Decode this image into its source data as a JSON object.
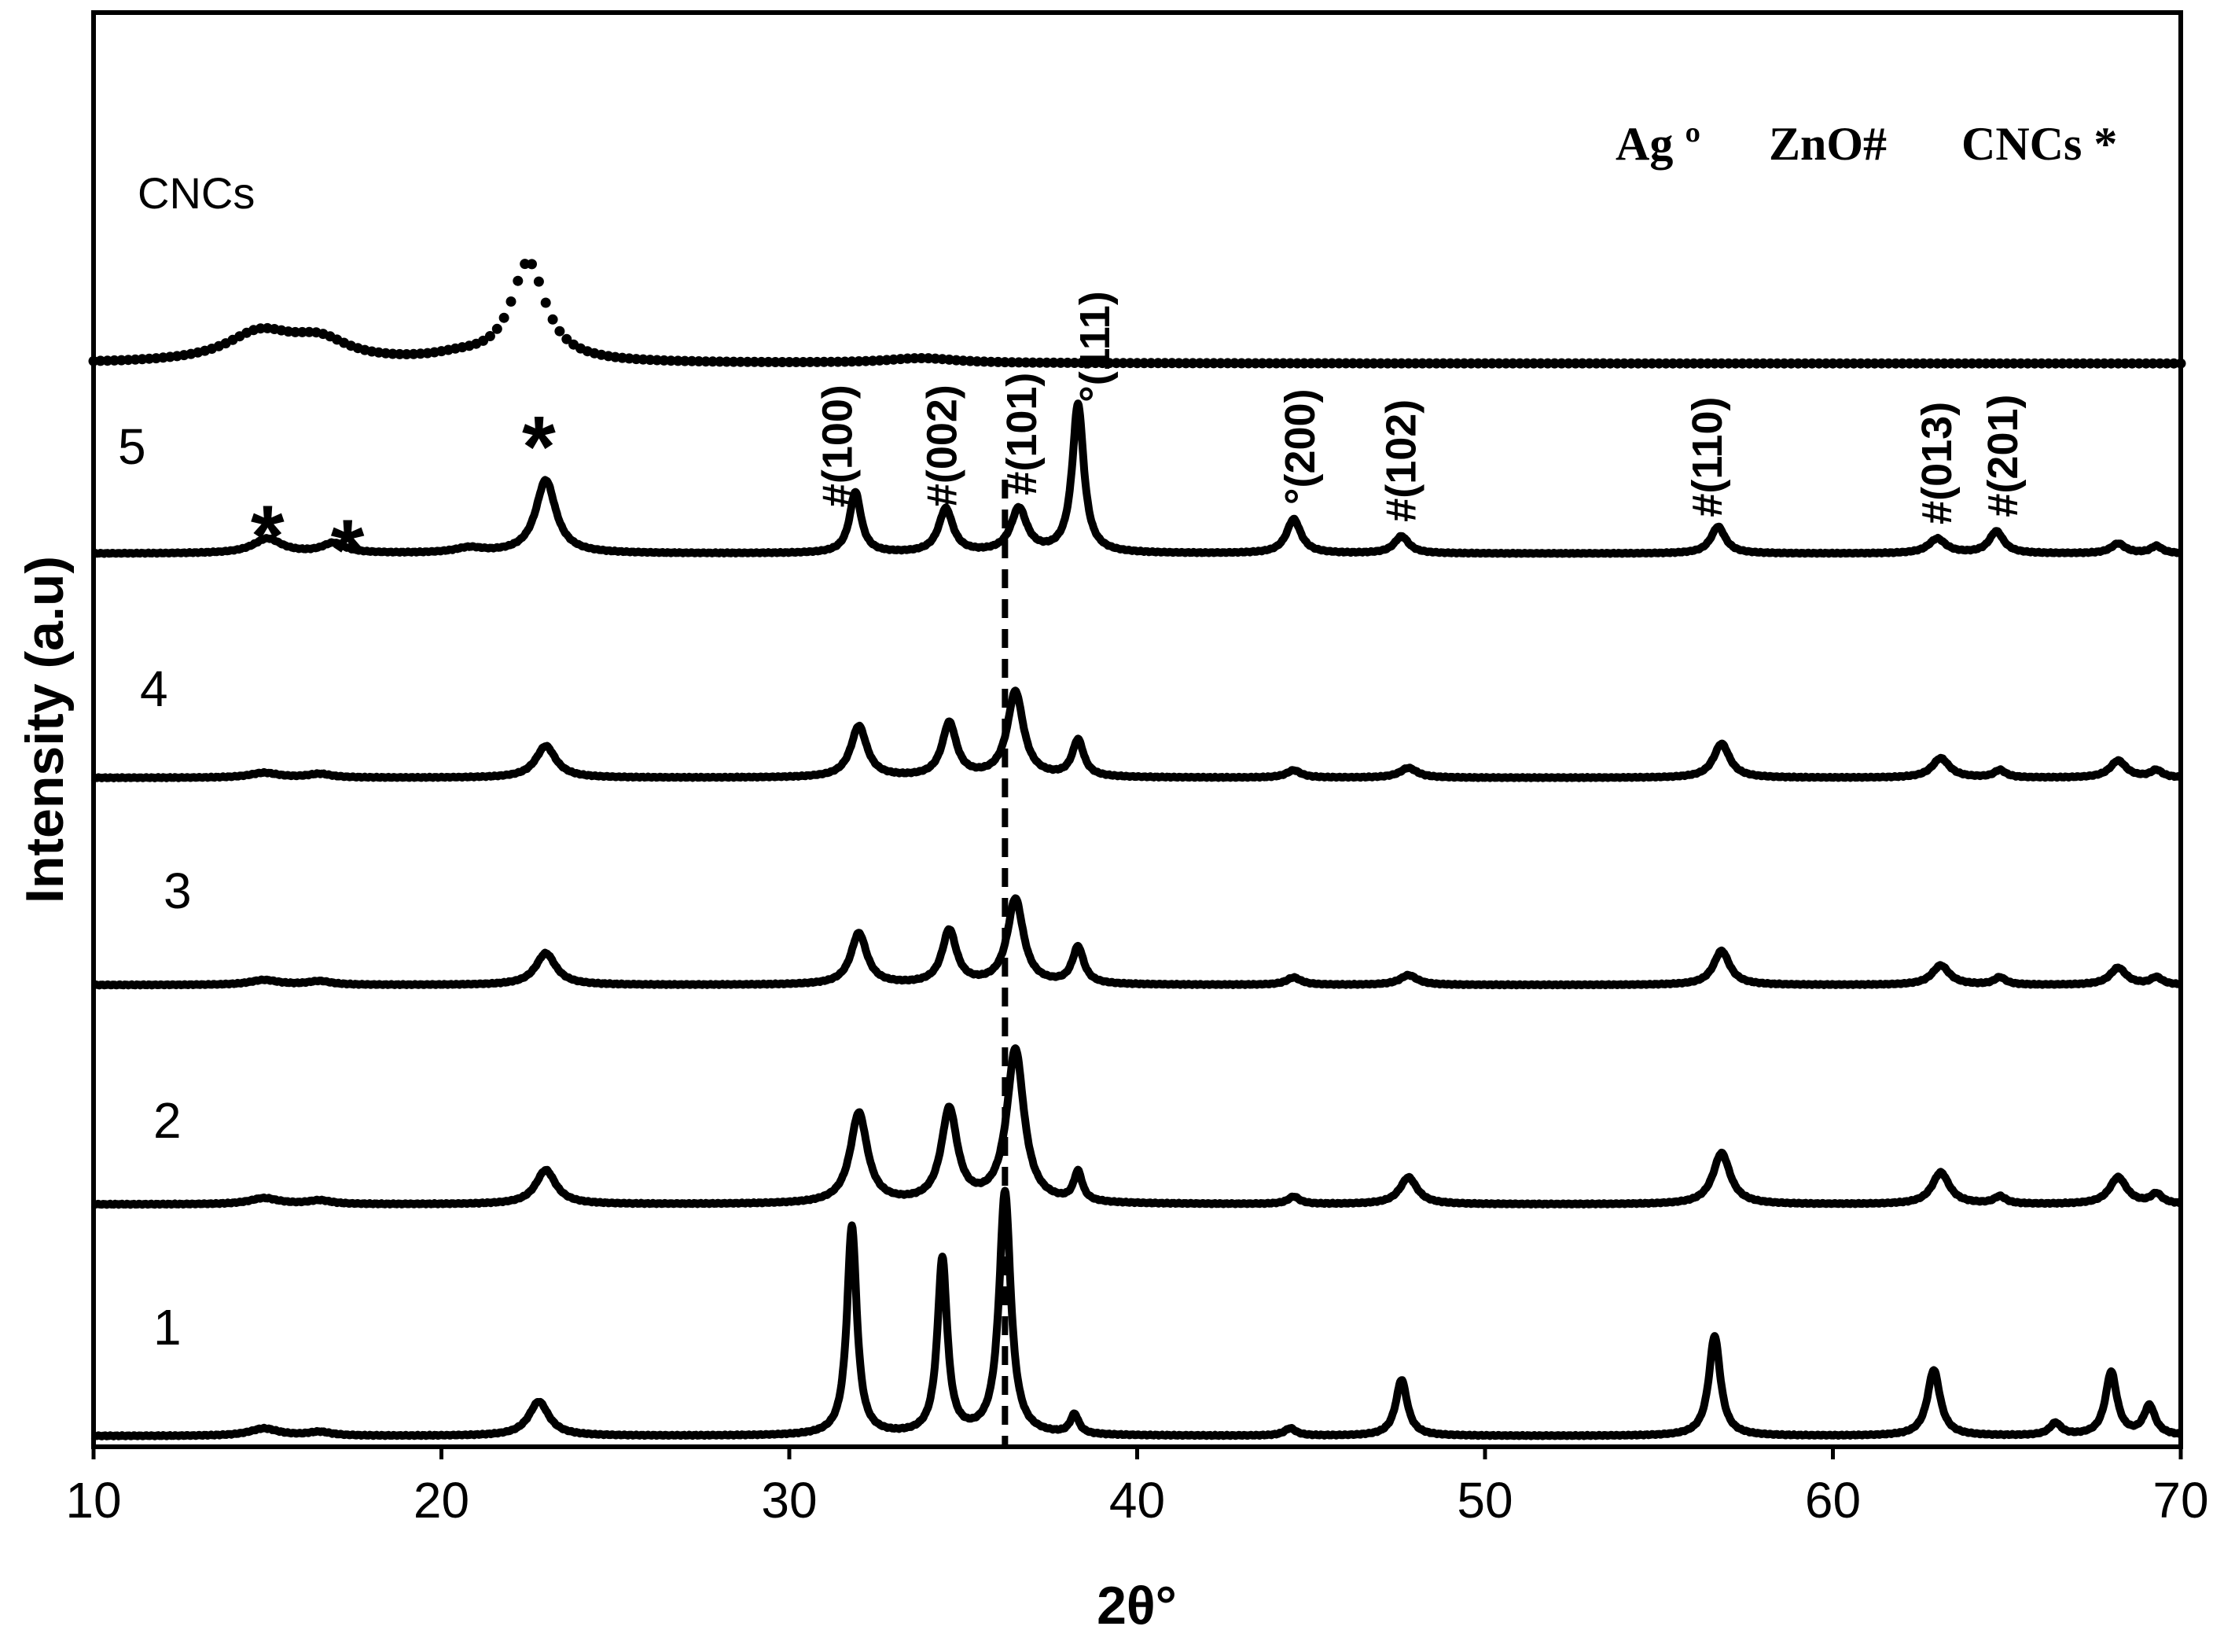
{
  "chart_data": {
    "type": "line",
    "title": "",
    "xlabel": "2θ°",
    "ylabel": "Intensity (a.u)",
    "xlim": [
      10,
      70
    ],
    "x_ticks": [
      "10",
      "20",
      "30",
      "40",
      "50",
      "60",
      "70"
    ],
    "grid": false,
    "reference_line": {
      "x": 36.2,
      "style": "dashed"
    },
    "legend_text": [
      "Ag º",
      "ZnO#",
      "CNCs *"
    ],
    "series": [
      {
        "name": "1",
        "offset": 0,
        "style": "solid",
        "baseline": 1.2,
        "peaks": [
          [
            14.9,
            3,
            0.5
          ],
          [
            16.5,
            1.5,
            0.4
          ],
          [
            22.8,
            14,
            0.35
          ],
          [
            31.8,
            86,
            0.17
          ],
          [
            34.4,
            72,
            0.17
          ],
          [
            36.2,
            100,
            0.2
          ],
          [
            38.2,
            8,
            0.15
          ],
          [
            44.4,
            3,
            0.2
          ],
          [
            47.6,
            23,
            0.2
          ],
          [
            56.6,
            41,
            0.2
          ],
          [
            62.9,
            27,
            0.22
          ],
          [
            66.4,
            5,
            0.2
          ],
          [
            68.0,
            26,
            0.2
          ],
          [
            69.1,
            12,
            0.2
          ]
        ]
      },
      {
        "name": "2",
        "offset": 95,
        "style": "solid",
        "baseline": 1.2,
        "peaks": [
          [
            14.9,
            2.5,
            0.5
          ],
          [
            16.5,
            1.5,
            0.4
          ],
          [
            23.0,
            14,
            0.35
          ],
          [
            32.0,
            37,
            0.3
          ],
          [
            34.6,
            38,
            0.28
          ],
          [
            36.5,
            63,
            0.3
          ],
          [
            38.3,
            12,
            0.15
          ],
          [
            44.5,
            3,
            0.2
          ],
          [
            47.8,
            11,
            0.3
          ],
          [
            56.8,
            21,
            0.3
          ],
          [
            63.1,
            13,
            0.3
          ],
          [
            64.8,
            3,
            0.2
          ],
          [
            68.2,
            11,
            0.3
          ],
          [
            69.3,
            4,
            0.2
          ]
        ]
      },
      {
        "name": "3",
        "offset": 185,
        "style": "solid",
        "baseline": 1.2,
        "peaks": [
          [
            14.9,
            2,
            0.5
          ],
          [
            16.5,
            1.5,
            0.4
          ],
          [
            23.0,
            13,
            0.35
          ],
          [
            32.0,
            21,
            0.28
          ],
          [
            34.6,
            22,
            0.25
          ],
          [
            36.5,
            35,
            0.28
          ],
          [
            38.3,
            15,
            0.2
          ],
          [
            44.5,
            3,
            0.25
          ],
          [
            47.8,
            4,
            0.3
          ],
          [
            56.8,
            14,
            0.28
          ],
          [
            63.1,
            8,
            0.3
          ],
          [
            64.8,
            3,
            0.2
          ],
          [
            68.2,
            7,
            0.28
          ],
          [
            69.3,
            3,
            0.2
          ]
        ]
      },
      {
        "name": "4",
        "offset": 270,
        "style": "solid",
        "baseline": 1.2,
        "peaks": [
          [
            14.9,
            2,
            0.5
          ],
          [
            16.5,
            1.5,
            0.4
          ],
          [
            23.0,
            13,
            0.35
          ],
          [
            32.0,
            21,
            0.28
          ],
          [
            34.6,
            22,
            0.25
          ],
          [
            36.5,
            35,
            0.28
          ],
          [
            38.3,
            15,
            0.2
          ],
          [
            44.5,
            3,
            0.25
          ],
          [
            47.8,
            4,
            0.3
          ],
          [
            56.8,
            14,
            0.28
          ],
          [
            63.1,
            8,
            0.3
          ],
          [
            64.8,
            3,
            0.2
          ],
          [
            68.2,
            7,
            0.28
          ],
          [
            69.3,
            3,
            0.2
          ]
        ]
      },
      {
        "name": "5",
        "offset": 362,
        "style": "solid",
        "baseline": 1.2,
        "peaks": [
          [
            15.0,
            6,
            0.5
          ],
          [
            16.9,
            4,
            0.4
          ],
          [
            20.8,
            2,
            0.5
          ],
          [
            23.0,
            30,
            0.35
          ],
          [
            31.9,
            25,
            0.2
          ],
          [
            34.5,
            18,
            0.25
          ],
          [
            36.6,
            18,
            0.28
          ],
          [
            38.3,
            61,
            0.2
          ],
          [
            44.5,
            14,
            0.25
          ],
          [
            47.6,
            7,
            0.25
          ],
          [
            56.7,
            11,
            0.25
          ],
          [
            63.0,
            6,
            0.3
          ],
          [
            64.7,
            9,
            0.25
          ],
          [
            68.2,
            4,
            0.25
          ],
          [
            69.3,
            3,
            0.2
          ]
        ]
      },
      {
        "name": "CNCs",
        "offset": 440,
        "style": "dotted",
        "baseline": 1.2,
        "peaks": [
          [
            14.8,
            12,
            1.2
          ],
          [
            16.5,
            8,
            1.0
          ],
          [
            20.5,
            2,
            1.0
          ],
          [
            22.5,
            41,
            0.6
          ],
          [
            33.8,
            2,
            1.2
          ]
        ]
      }
    ],
    "stars": [
      {
        "text": "*",
        "x": 15.0,
        "series": "5",
        "dy": 14
      },
      {
        "text": "*",
        "x": 17.3,
        "series": "5",
        "dy": 12
      },
      {
        "text": "*",
        "x": 22.8,
        "series": "5",
        "dy": 34
      }
    ],
    "peak_labels": [
      {
        "text": "#(100)",
        "x": 31.8,
        "yrel": 19
      },
      {
        "text": "#(002)",
        "x": 34.8,
        "yrel": 19
      },
      {
        "text": "#(101)",
        "x": 37.1,
        "yrel": 24
      },
      {
        "text": "°(111)",
        "x": 39.2,
        "yrel": 62
      },
      {
        "text": "°(200)",
        "x": 45.1,
        "yrel": 20
      },
      {
        "text": "#(102)",
        "x": 48.0,
        "yrel": 13
      },
      {
        "text": "#(110)",
        "x": 56.8,
        "yrel": 15
      },
      {
        "text": "#(013)",
        "x": 63.4,
        "yrel": 12
      },
      {
        "text": "#(201)",
        "x": 65.3,
        "yrel": 15
      }
    ]
  }
}
